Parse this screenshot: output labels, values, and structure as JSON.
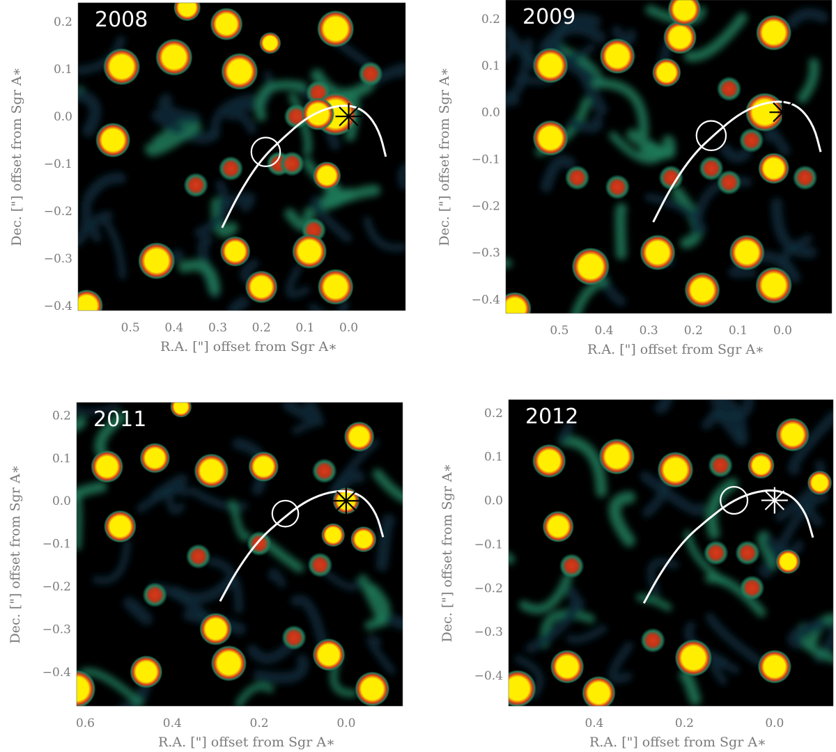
{
  "figure": {
    "colors": {
      "background": "#000000",
      "diffuse": "#0d2a3a",
      "filament": "#1f7a5a",
      "medium": "#d63a1a",
      "bright": "#ffee00",
      "orbit": "#ffffff",
      "axis_text": "#7a7a7a"
    }
  },
  "chart_data": [
    {
      "type": "heatmap",
      "title": "2008",
      "xlabel": "R.A. [\"] offset from Sgr A∗",
      "ylabel": "Dec. [\"] offset from Sgr A∗",
      "xlim": [
        0.62,
        -0.13
      ],
      "ylim": [
        -0.41,
        0.24
      ],
      "xticks": [
        0.5,
        0.4,
        0.3,
        0.2,
        0.1,
        0.0
      ],
      "xtick_labels": [
        "0.5",
        "0.4",
        "0.3",
        "0.2",
        "0.1",
        "0.0"
      ],
      "yticks": [
        0.2,
        0.1,
        0.0,
        -0.1,
        -0.2,
        -0.3,
        -0.4
      ],
      "ytick_labels": [
        "0.2",
        "0.1",
        "0.0",
        "−0.1",
        "−0.2",
        "−0.3",
        "−0.4"
      ],
      "sgr_a_marker": {
        "x": 0.0,
        "y": 0.0,
        "color": "black"
      },
      "circle": {
        "x": 0.19,
        "y": -0.075,
        "r": 0.033
      },
      "orbit": [
        [
          0.29,
          -0.235
        ],
        [
          0.25,
          -0.16
        ],
        [
          0.2,
          -0.09
        ],
        [
          0.15,
          -0.045
        ],
        [
          0.1,
          -0.005
        ],
        [
          0.05,
          0.018
        ],
        [
          0.0,
          0.025
        ],
        [
          -0.04,
          0.01
        ],
        [
          -0.07,
          -0.03
        ],
        [
          -0.085,
          -0.085
        ]
      ],
      "stars": [
        {
          "x": 0.52,
          "y": 0.105,
          "r": 0.034
        },
        {
          "x": 0.4,
          "y": 0.125,
          "r": 0.034
        },
        {
          "x": 0.25,
          "y": 0.095,
          "r": 0.034
        },
        {
          "x": 0.28,
          "y": 0.195,
          "r": 0.03
        },
        {
          "x": 0.03,
          "y": 0.185,
          "r": 0.034
        },
        {
          "x": 0.54,
          "y": -0.05,
          "r": 0.032
        },
        {
          "x": 0.44,
          "y": -0.305,
          "r": 0.034
        },
        {
          "x": 0.26,
          "y": -0.285,
          "r": 0.028
        },
        {
          "x": 0.2,
          "y": -0.36,
          "r": 0.03
        },
        {
          "x": 0.09,
          "y": -0.285,
          "r": 0.032
        },
        {
          "x": 0.03,
          "y": -0.36,
          "r": 0.033
        },
        {
          "x": 0.05,
          "y": -0.125,
          "r": 0.026
        },
        {
          "x": 0.03,
          "y": 0.005,
          "r": 0.04
        },
        {
          "x": 0.07,
          "y": 0.005,
          "r": 0.03
        },
        {
          "x": 0.6,
          "y": -0.4,
          "r": 0.03
        },
        {
          "x": 0.37,
          "y": 0.23,
          "r": 0.025
        },
        {
          "x": 0.18,
          "y": 0.155,
          "r": 0.02
        }
      ],
      "knots": [
        {
          "x": 0.27,
          "y": -0.11
        },
        {
          "x": 0.16,
          "y": -0.1
        },
        {
          "x": 0.13,
          "y": -0.1
        },
        {
          "x": 0.35,
          "y": -0.145
        },
        {
          "x": 0.07,
          "y": 0.05
        },
        {
          "x": 0.12,
          "y": 0.0
        },
        {
          "x": -0.05,
          "y": 0.09
        },
        {
          "x": 0.08,
          "y": -0.24
        }
      ]
    },
    {
      "type": "heatmap",
      "title": "2009",
      "xlabel": "R.A. [\"] offset from Sgr A∗",
      "ylabel": "Dec. [\"] offset from Sgr A∗",
      "xlim": [
        0.62,
        -0.11
      ],
      "ylim": [
        -0.43,
        0.24
      ],
      "xticks": [
        0.5,
        0.4,
        0.3,
        0.2,
        0.1,
        0.0
      ],
      "xtick_labels": [
        "0.5",
        "0.4",
        "0.3",
        "0.2",
        "0.1",
        "0.0"
      ],
      "yticks": [
        0.2,
        0.1,
        0.0,
        -0.1,
        -0.2,
        -0.3,
        -0.4
      ],
      "ytick_labels": [
        "0.2",
        "0.1",
        "0.0",
        "−0.1",
        "−0.2",
        "−0.3",
        "−0.4"
      ],
      "sgr_a_marker": {
        "x": 0.0,
        "y": 0.0,
        "color": "black"
      },
      "circle": {
        "x": 0.16,
        "y": -0.05,
        "r": 0.033
      },
      "orbit": [
        [
          0.29,
          -0.235
        ],
        [
          0.25,
          -0.16
        ],
        [
          0.2,
          -0.09
        ],
        [
          0.15,
          -0.045
        ],
        [
          0.1,
          -0.005
        ],
        [
          0.05,
          0.018
        ],
        [
          0.0,
          0.025
        ],
        [
          -0.04,
          0.01
        ],
        [
          -0.07,
          -0.03
        ],
        [
          -0.085,
          -0.085
        ]
      ],
      "stars": [
        {
          "x": 0.52,
          "y": 0.1,
          "r": 0.032
        },
        {
          "x": 0.37,
          "y": 0.12,
          "r": 0.032
        },
        {
          "x": 0.23,
          "y": 0.16,
          "r": 0.03
        },
        {
          "x": 0.02,
          "y": 0.17,
          "r": 0.032
        },
        {
          "x": 0.22,
          "y": 0.22,
          "r": 0.03
        },
        {
          "x": 0.52,
          "y": -0.055,
          "r": 0.032
        },
        {
          "x": 0.43,
          "y": -0.33,
          "r": 0.034
        },
        {
          "x": 0.28,
          "y": -0.3,
          "r": 0.032
        },
        {
          "x": 0.18,
          "y": -0.38,
          "r": 0.032
        },
        {
          "x": 0.08,
          "y": -0.3,
          "r": 0.032
        },
        {
          "x": 0.02,
          "y": -0.37,
          "r": 0.033
        },
        {
          "x": 0.04,
          "y": 0.0,
          "r": 0.035
        },
        {
          "x": 0.26,
          "y": 0.085,
          "r": 0.026
        },
        {
          "x": 0.02,
          "y": -0.12,
          "r": 0.028
        },
        {
          "x": 0.6,
          "y": -0.42,
          "r": 0.03
        }
      ],
      "knots": [
        {
          "x": 0.25,
          "y": -0.14
        },
        {
          "x": 0.16,
          "y": -0.12
        },
        {
          "x": 0.12,
          "y": -0.15
        },
        {
          "x": 0.37,
          "y": -0.16
        },
        {
          "x": 0.12,
          "y": 0.05
        },
        {
          "x": 0.07,
          "y": -0.06
        },
        {
          "x": -0.05,
          "y": -0.14
        },
        {
          "x": 0.46,
          "y": -0.14
        }
      ]
    },
    {
      "type": "heatmap",
      "title": "2011",
      "xlabel": "R.A. [\"] offset from Sgr A∗",
      "ylabel": "Dec. [\"] offset from Sgr A∗",
      "xlim": [
        0.62,
        -0.13
      ],
      "ylim": [
        -0.48,
        0.23
      ],
      "xticks": [
        0.6,
        0.4,
        0.2,
        0.0
      ],
      "xtick_labels": [
        "0.6",
        "0.4",
        "0.2",
        "0.0"
      ],
      "yticks": [
        0.2,
        0.1,
        0.0,
        -0.1,
        -0.2,
        -0.3,
        -0.4
      ],
      "ytick_labels": [
        "0.2",
        "0.1",
        "0.0",
        "−0.1",
        "−0.2",
        "−0.3",
        "−0.4"
      ],
      "sgr_a_marker": {
        "x": 0.0,
        "y": 0.0,
        "color": "black"
      },
      "circle": {
        "x": 0.14,
        "y": -0.03,
        "r": 0.03
      },
      "orbit": [
        [
          0.29,
          -0.235
        ],
        [
          0.25,
          -0.16
        ],
        [
          0.2,
          -0.09
        ],
        [
          0.15,
          -0.045
        ],
        [
          0.1,
          -0.005
        ],
        [
          0.05,
          0.018
        ],
        [
          0.0,
          0.025
        ],
        [
          -0.04,
          0.01
        ],
        [
          -0.07,
          -0.03
        ],
        [
          -0.085,
          -0.085
        ]
      ],
      "stars": [
        {
          "x": 0.55,
          "y": 0.08,
          "r": 0.03
        },
        {
          "x": 0.44,
          "y": 0.1,
          "r": 0.028
        },
        {
          "x": 0.31,
          "y": 0.07,
          "r": 0.032
        },
        {
          "x": 0.19,
          "y": 0.08,
          "r": 0.028
        },
        {
          "x": -0.03,
          "y": 0.15,
          "r": 0.028
        },
        {
          "x": 0.52,
          "y": -0.06,
          "r": 0.03
        },
        {
          "x": 0.46,
          "y": -0.4,
          "r": 0.03
        },
        {
          "x": 0.3,
          "y": -0.3,
          "r": 0.03
        },
        {
          "x": 0.27,
          "y": -0.38,
          "r": 0.033
        },
        {
          "x": 0.04,
          "y": -0.36,
          "r": 0.03
        },
        {
          "x": 0.62,
          "y": -0.44,
          "r": 0.035
        },
        {
          "x": -0.06,
          "y": -0.44,
          "r": 0.032
        },
        {
          "x": -0.04,
          "y": -0.09,
          "r": 0.024
        },
        {
          "x": 0.03,
          "y": -0.08,
          "r": 0.022
        },
        {
          "x": 0.0,
          "y": 0.0,
          "r": 0.025
        },
        {
          "x": 0.38,
          "y": 0.22,
          "r": 0.02
        }
      ],
      "knots": [
        {
          "x": 0.34,
          "y": -0.13
        },
        {
          "x": 0.2,
          "y": -0.1
        },
        {
          "x": 0.06,
          "y": -0.15
        },
        {
          "x": 0.05,
          "y": 0.07
        },
        {
          "x": 0.44,
          "y": -0.22
        },
        {
          "x": 0.12,
          "y": -0.32
        }
      ]
    },
    {
      "type": "heatmap",
      "title": "2012",
      "xlabel": "R.A. [\"] offset from Sgr A∗",
      "ylabel": "Dec. [\"] offset from Sgr A∗",
      "xlim": [
        0.59,
        -0.13
      ],
      "ylim": [
        -0.47,
        0.23
      ],
      "xticks": [
        0.4,
        0.2,
        0.0
      ],
      "xtick_labels": [
        "0.4",
        "0.2",
        "0.0"
      ],
      "yticks": [
        0.2,
        0.1,
        0.0,
        -0.1,
        -0.2,
        -0.3,
        -0.4
      ],
      "ytick_labels": [
        "0.2",
        "0.1",
        "0.0",
        "−0.1",
        "−0.2",
        "−0.3",
        "−0.4"
      ],
      "sgr_a_marker": {
        "x": 0.0,
        "y": 0.0,
        "color": "white"
      },
      "circle": {
        "x": 0.09,
        "y": 0.0,
        "r": 0.03
      },
      "orbit": [
        [
          0.29,
          -0.235
        ],
        [
          0.25,
          -0.16
        ],
        [
          0.2,
          -0.09
        ],
        [
          0.15,
          -0.045
        ],
        [
          0.1,
          -0.005
        ],
        [
          0.05,
          0.018
        ],
        [
          0.0,
          0.025
        ],
        [
          -0.04,
          0.01
        ],
        [
          -0.07,
          -0.03
        ],
        [
          -0.085,
          -0.085
        ]
      ],
      "stars": [
        {
          "x": 0.5,
          "y": 0.09,
          "r": 0.03
        },
        {
          "x": 0.35,
          "y": 0.1,
          "r": 0.032
        },
        {
          "x": 0.22,
          "y": 0.07,
          "r": 0.032
        },
        {
          "x": -0.04,
          "y": 0.15,
          "r": 0.03
        },
        {
          "x": 0.48,
          "y": -0.06,
          "r": 0.028
        },
        {
          "x": 0.46,
          "y": -0.38,
          "r": 0.03
        },
        {
          "x": 0.39,
          "y": -0.44,
          "r": 0.03
        },
        {
          "x": 0.18,
          "y": -0.36,
          "r": 0.033
        },
        {
          "x": 0.0,
          "y": -0.38,
          "r": 0.03
        },
        {
          "x": 0.57,
          "y": -0.43,
          "r": 0.033
        },
        {
          "x": 0.03,
          "y": 0.08,
          "r": 0.024
        },
        {
          "x": -0.1,
          "y": 0.04,
          "r": 0.022
        },
        {
          "x": -0.03,
          "y": -0.14,
          "r": 0.022
        }
      ],
      "knots": [
        {
          "x": 0.13,
          "y": -0.12
        },
        {
          "x": 0.06,
          "y": -0.12
        },
        {
          "x": 0.05,
          "y": -0.2
        },
        {
          "x": 0.27,
          "y": -0.32
        },
        {
          "x": 0.12,
          "y": 0.08
        },
        {
          "x": 0.45,
          "y": -0.15
        }
      ]
    }
  ]
}
